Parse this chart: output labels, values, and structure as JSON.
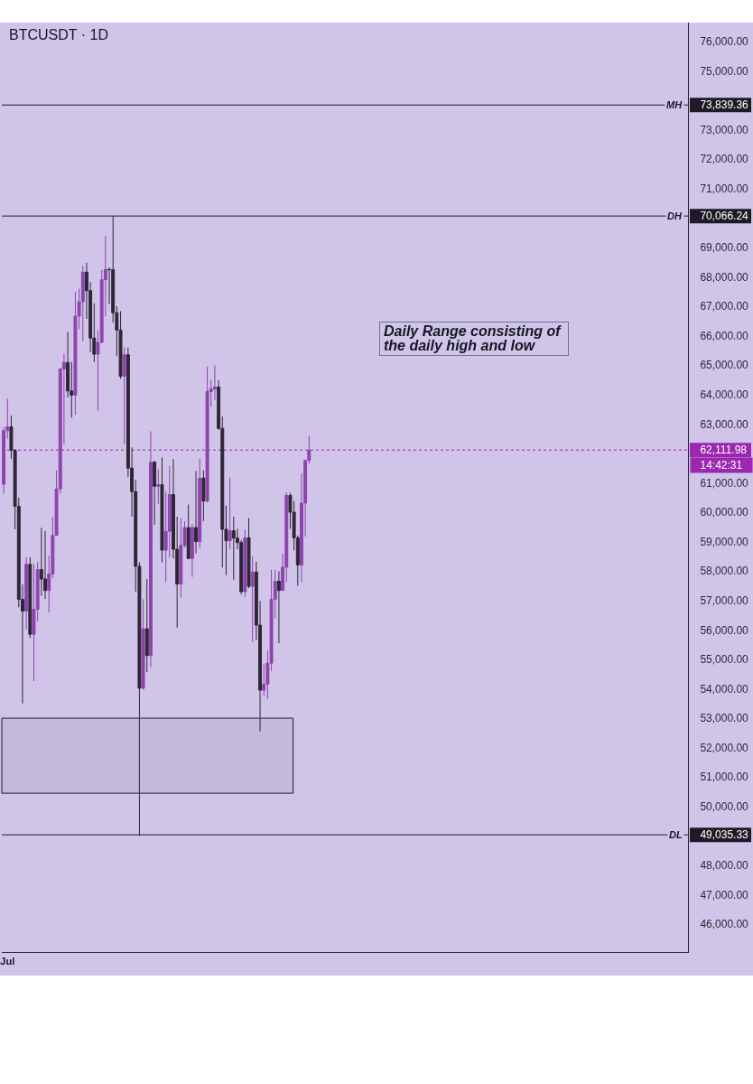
{
  "chart_data": {
    "type": "candlestick",
    "title": "BTCUSDT · 1D",
    "categories": [
      null,
      "Jul",
      null,
      null,
      null,
      null,
      null,
      null,
      null,
      null,
      null,
      null,
      null,
      null,
      null,
      null,
      null,
      null,
      null,
      null,
      null,
      null,
      null,
      null,
      null,
      null,
      null,
      null,
      null,
      null,
      null,
      null,
      null,
      null,
      null,
      null,
      null,
      null,
      null,
      null,
      null,
      null,
      null,
      null,
      null,
      null,
      null,
      null,
      null,
      null,
      null,
      null,
      null,
      null,
      null,
      null,
      null,
      null,
      null,
      null,
      null,
      null,
      null,
      null,
      null,
      null,
      null,
      null,
      null,
      null,
      null,
      null,
      null,
      null,
      null,
      null,
      null,
      null,
      null,
      null,
      null,
      null,
      null,
      null,
      null,
      null,
      null,
      null,
      null,
      null,
      null,
      null,
      null,
      null,
      null,
      null,
      null,
      null,
      null,
      null,
      null,
      null,
      null,
      null,
      null,
      null,
      null,
      null,
      null,
      null,
      null,
      null,
      null,
      null,
      null,
      null,
      null,
      null,
      null,
      null,
      null,
      null,
      null,
      null,
      null,
      null,
      null,
      null,
      null,
      null,
      null,
      null,
      null,
      null,
      null,
      null,
      null,
      null,
      null,
      null,
      null,
      null,
      null,
      null,
      null,
      null,
      null,
      null,
      null,
      null,
      null,
      null,
      null,
      null,
      null,
      null,
      null,
      null,
      null,
      null,
      null,
      null,
      null,
      null,
      null,
      null,
      null,
      null,
      null,
      null,
      null,
      null,
      null,
      null,
      null,
      null,
      null,
      null,
      null,
      null,
      null,
      null
    ],
    "ohlc": [
      [
        60950,
        62890,
        60630,
        62770
      ],
      [
        62770,
        63860,
        62500,
        62900
      ],
      [
        62900,
        63290,
        61810,
        62100
      ],
      [
        62100,
        62150,
        59420,
        60200
      ],
      [
        60200,
        60500,
        56770,
        57040
      ],
      [
        57040,
        57550,
        53500,
        56640
      ],
      [
        56640,
        58480,
        56020,
        58230
      ],
      [
        58230,
        58470,
        55720,
        55850
      ],
      [
        55850,
        58240,
        54260,
        56700
      ],
      [
        56700,
        58300,
        56290,
        58050
      ],
      [
        58050,
        59470,
        57160,
        57730
      ],
      [
        57730,
        59360,
        57050,
        57340
      ],
      [
        57340,
        58530,
        56590,
        57900
      ],
      [
        57900,
        59850,
        57760,
        59210
      ],
      [
        59210,
        61420,
        59200,
        60790
      ],
      [
        60790,
        64900,
        60630,
        64870
      ],
      [
        64870,
        65390,
        62300,
        65090
      ],
      [
        65090,
        66130,
        63900,
        64120
      ],
      [
        64120,
        65110,
        63210,
        63980
      ],
      [
        63980,
        67490,
        63310,
        66660
      ],
      [
        66660,
        67600,
        66220,
        67150
      ],
      [
        67150,
        68380,
        65810,
        68160
      ],
      [
        68160,
        68480,
        66570,
        67530
      ],
      [
        67530,
        67820,
        65440,
        65920
      ],
      [
        65920,
        67100,
        65100,
        65370
      ],
      [
        65370,
        66180,
        63450,
        65770
      ],
      [
        65770,
        68230,
        65760,
        67900
      ],
      [
        67900,
        69400,
        66650,
        68250
      ],
      [
        68250,
        68320,
        67070,
        68240
      ],
      [
        68240,
        70070,
        66450,
        66780
      ],
      [
        66780,
        67000,
        65300,
        66190
      ],
      [
        66190,
        66830,
        64530,
        64620
      ],
      [
        64620,
        65600,
        62300,
        65350
      ],
      [
        65350,
        65600,
        61200,
        61500
      ],
      [
        61500,
        62200,
        59850,
        60700
      ],
      [
        60700,
        61100,
        57300,
        58160
      ],
      [
        58160,
        58300,
        49000,
        54020
      ],
      [
        54020,
        57040,
        53970,
        56040
      ],
      [
        56040,
        57720,
        54560,
        55130
      ],
      [
        55130,
        62750,
        54730,
        61700
      ],
      [
        61700,
        61750,
        59570,
        60880
      ],
      [
        60880,
        61470,
        60280,
        60940
      ],
      [
        60940,
        61860,
        58300,
        58710
      ],
      [
        58710,
        60700,
        57630,
        59350
      ],
      [
        59350,
        61570,
        58470,
        60600
      ],
      [
        60600,
        61800,
        58430,
        58740
      ],
      [
        58740,
        59850,
        56080,
        57560
      ],
      [
        57560,
        59800,
        57100,
        58870
      ],
      [
        58870,
        59690,
        58800,
        59480
      ],
      [
        59480,
        60260,
        58400,
        58430
      ],
      [
        58430,
        59600,
        57800,
        59480
      ],
      [
        59480,
        61400,
        58600,
        59000
      ],
      [
        59000,
        61820,
        58780,
        61160
      ],
      [
        61160,
        61420,
        59700,
        60380
      ],
      [
        60380,
        64950,
        60330,
        64100
      ],
      [
        64100,
        64500,
        63580,
        64190
      ],
      [
        64190,
        65000,
        63820,
        64250
      ],
      [
        64250,
        64480,
        62800,
        62850
      ],
      [
        62850,
        63250,
        58120,
        59420
      ],
      [
        59420,
        60230,
        57860,
        59030
      ],
      [
        59030,
        61180,
        58750,
        59370
      ],
      [
        59370,
        59850,
        57700,
        59120
      ],
      [
        59120,
        59440,
        58740,
        58970
      ],
      [
        58970,
        59060,
        57200,
        57300
      ],
      [
        57300,
        59400,
        57130,
        59130
      ],
      [
        59130,
        59800,
        57420,
        57480
      ],
      [
        57480,
        58500,
        55600,
        57970
      ],
      [
        57970,
        58320,
        55660,
        56160
      ],
      [
        56160,
        56990,
        52550,
        53950
      ],
      [
        53950,
        54850,
        53750,
        54160
      ],
      [
        54160,
        55300,
        53650,
        54870
      ],
      [
        54870,
        58050,
        54600,
        57040
      ],
      [
        57040,
        58040,
        56400,
        57650
      ],
      [
        57650,
        57990,
        55550,
        57340
      ],
      [
        57340,
        58590,
        57330,
        58130
      ],
      [
        58130,
        60670,
        57630,
        60570
      ],
      [
        60570,
        60660,
        59440,
        60000
      ],
      [
        60000,
        60380,
        58700,
        59130
      ],
      [
        59130,
        59210,
        57500,
        58210
      ],
      [
        58210,
        61320,
        57610,
        60310
      ],
      [
        60310,
        61790,
        59170,
        61760
      ],
      [
        61760,
        62600,
        61650,
        62112
      ],
      null,
      null,
      null,
      null,
      null,
      null,
      null,
      null,
      null,
      null,
      null,
      null,
      null,
      null,
      null,
      null,
      null,
      null,
      null,
      null,
      null,
      null,
      null,
      null,
      null,
      null,
      null,
      null,
      null,
      null,
      null,
      null,
      null,
      null,
      null,
      null,
      null,
      null,
      null,
      null,
      null,
      null,
      null,
      null,
      null,
      null,
      null,
      null,
      null,
      null,
      null,
      null,
      null,
      null,
      null,
      null,
      null,
      null,
      null,
      null,
      null,
      null,
      null,
      null,
      null,
      null,
      null,
      null,
      null,
      null,
      null,
      null,
      null,
      null,
      null,
      null,
      null,
      null,
      null,
      null,
      null,
      null,
      null,
      null,
      null,
      null,
      null,
      null,
      null,
      null,
      null,
      null,
      null,
      null,
      null,
      null,
      null,
      null,
      null,
      null
    ],
    "colors": [
      "#8e44ad",
      "#8e44ad",
      "#2d2636",
      "#2d2636",
      "#2d2636",
      "#2d2636",
      "#8e44ad",
      "#2d2636",
      "#8e44ad",
      "#8e44ad",
      "#2d2636",
      "#2d2636",
      "#8e44ad",
      "#8e44ad",
      "#8e44ad",
      "#8e44ad",
      "#8e44ad",
      "#2d2636",
      "#2d2636",
      "#8e44ad",
      "#8e44ad",
      "#8e44ad",
      "#2d2636",
      "#2d2636",
      "#2d2636",
      "#8e44ad",
      "#8e44ad",
      "#8e44ad",
      "#2d2636",
      "#2d2636",
      "#2d2636",
      "#2d2636",
      "#8e44ad",
      "#2d2636",
      "#2d2636",
      "#2d2636",
      "#2d2636",
      "#8e44ad",
      "#2d2636",
      "#8e44ad",
      "#2d2636",
      "#8e44ad",
      "#2d2636",
      "#8e44ad",
      "#8e44ad",
      "#2d2636",
      "#2d2636",
      "#8e44ad",
      "#8e44ad",
      "#2d2636",
      "#8e44ad",
      "#2d2636",
      "#8e44ad",
      "#2d2636",
      "#8e44ad",
      "#8e44ad",
      "#8e44ad",
      "#2d2636",
      "#2d2636",
      "#2d2636",
      "#8e44ad",
      "#2d2636",
      "#2d2636",
      "#2d2636",
      "#8e44ad",
      "#2d2636",
      "#8e44ad",
      "#2d2636",
      "#2d2636",
      "#8e44ad",
      "#8e44ad",
      "#8e44ad",
      "#8e44ad",
      "#2d2636",
      "#8e44ad",
      "#8e44ad",
      "#2d2636",
      "#2d2636",
      "#2d2636",
      "#8e44ad",
      "#8e44ad",
      "#8e44ad",
      null,
      null,
      null,
      null,
      null,
      null,
      null,
      null,
      null,
      null,
      null,
      null,
      null,
      null,
      null,
      null,
      null,
      null,
      null,
      null,
      null,
      null,
      null,
      null,
      null,
      null,
      null,
      null,
      null,
      null,
      null,
      null,
      null,
      null,
      null,
      null,
      null,
      null,
      null,
      null,
      null,
      null,
      null,
      null,
      null,
      null,
      null,
      null,
      null,
      null,
      null,
      null,
      null,
      null,
      null,
      null,
      null,
      null,
      null,
      null,
      null,
      null,
      null,
      null,
      null,
      null,
      null,
      null,
      null,
      null,
      null,
      null,
      null,
      null,
      null,
      null,
      null,
      null,
      null,
      null,
      null,
      null,
      null,
      null,
      null,
      null,
      null,
      null,
      null,
      null,
      null,
      null,
      null,
      null,
      null,
      null,
      null,
      null,
      null,
      null
    ],
    "ylim": [
      45050,
      76640
    ],
    "yticks": [
      {
        "value": 46000,
        "label": "46,000.00"
      },
      {
        "value": 47000,
        "label": "47,000.00"
      },
      {
        "value": 48000,
        "label": "48,000.00"
      },
      {
        "value": 49035.33,
        "label": "49,035.33"
      },
      {
        "value": 50000,
        "label": "50,000.00"
      },
      {
        "value": 51000,
        "label": "51,000.00"
      },
      {
        "value": 52000,
        "label": "52,000.00"
      },
      {
        "value": 53000,
        "label": "53,000.00"
      },
      {
        "value": 54000,
        "label": "54,000.00"
      },
      {
        "value": 55000,
        "label": "55,000.00"
      },
      {
        "value": 56000,
        "label": "56,000.00"
      },
      {
        "value": 57000,
        "label": "57,000.00"
      },
      {
        "value": 58000,
        "label": "58,000.00"
      },
      {
        "value": 59000,
        "label": "59,000.00"
      },
      {
        "value": 60000,
        "label": "60,000.00"
      },
      {
        "value": 61000,
        "label": "61,000.00"
      },
      {
        "value": 62111.98,
        "label": "62,111.98"
      },
      {
        "value": 63000,
        "label": "63,000.00"
      },
      {
        "value": 64000,
        "label": "64,000.00"
      },
      {
        "value": 65000,
        "label": "65,000.00"
      },
      {
        "value": 66000,
        "label": "66,000.00"
      },
      {
        "value": 67000,
        "label": "67,000.00"
      },
      {
        "value": 68000,
        "label": "68,000.00"
      },
      {
        "value": 69000,
        "label": "69,000.00"
      },
      {
        "value": 70066.24,
        "label": "70,066.24"
      },
      {
        "value": 71000,
        "label": "71,000.00"
      },
      {
        "value": 72000,
        "label": "72,000.00"
      },
      {
        "value": 73000,
        "label": "73,000.00"
      },
      {
        "value": 73839.36,
        "label": "73,839.36"
      },
      {
        "value": 75000,
        "label": "75,000.00"
      },
      {
        "value": 76000,
        "label": "76,000.00"
      }
    ],
    "ref_lines": [
      {
        "axis": "y",
        "value": 73839.36,
        "label": "MH",
        "color": "#1e1b26",
        "line_style": "solid"
      },
      {
        "axis": "y",
        "value": 70066.24,
        "label": "DH",
        "color": "#1e1b26",
        "line_style": "solid"
      },
      {
        "axis": "y",
        "value": 49035.33,
        "label": "DL",
        "color": "#1e1b26",
        "line_style": "solid"
      },
      {
        "axis": "y",
        "value": 62111.98,
        "color": "#9c27b0",
        "line_style": "dotted"
      }
    ],
    "bands": [
      {
        "axis": "y",
        "from": 50450,
        "to": 53000,
        "color": "#1e1b26"
      }
    ],
    "annotations": [
      "Daily Range consisting of the daily high and low",
      "14:42:31"
    ],
    "grid": false,
    "legend": false
  }
}
